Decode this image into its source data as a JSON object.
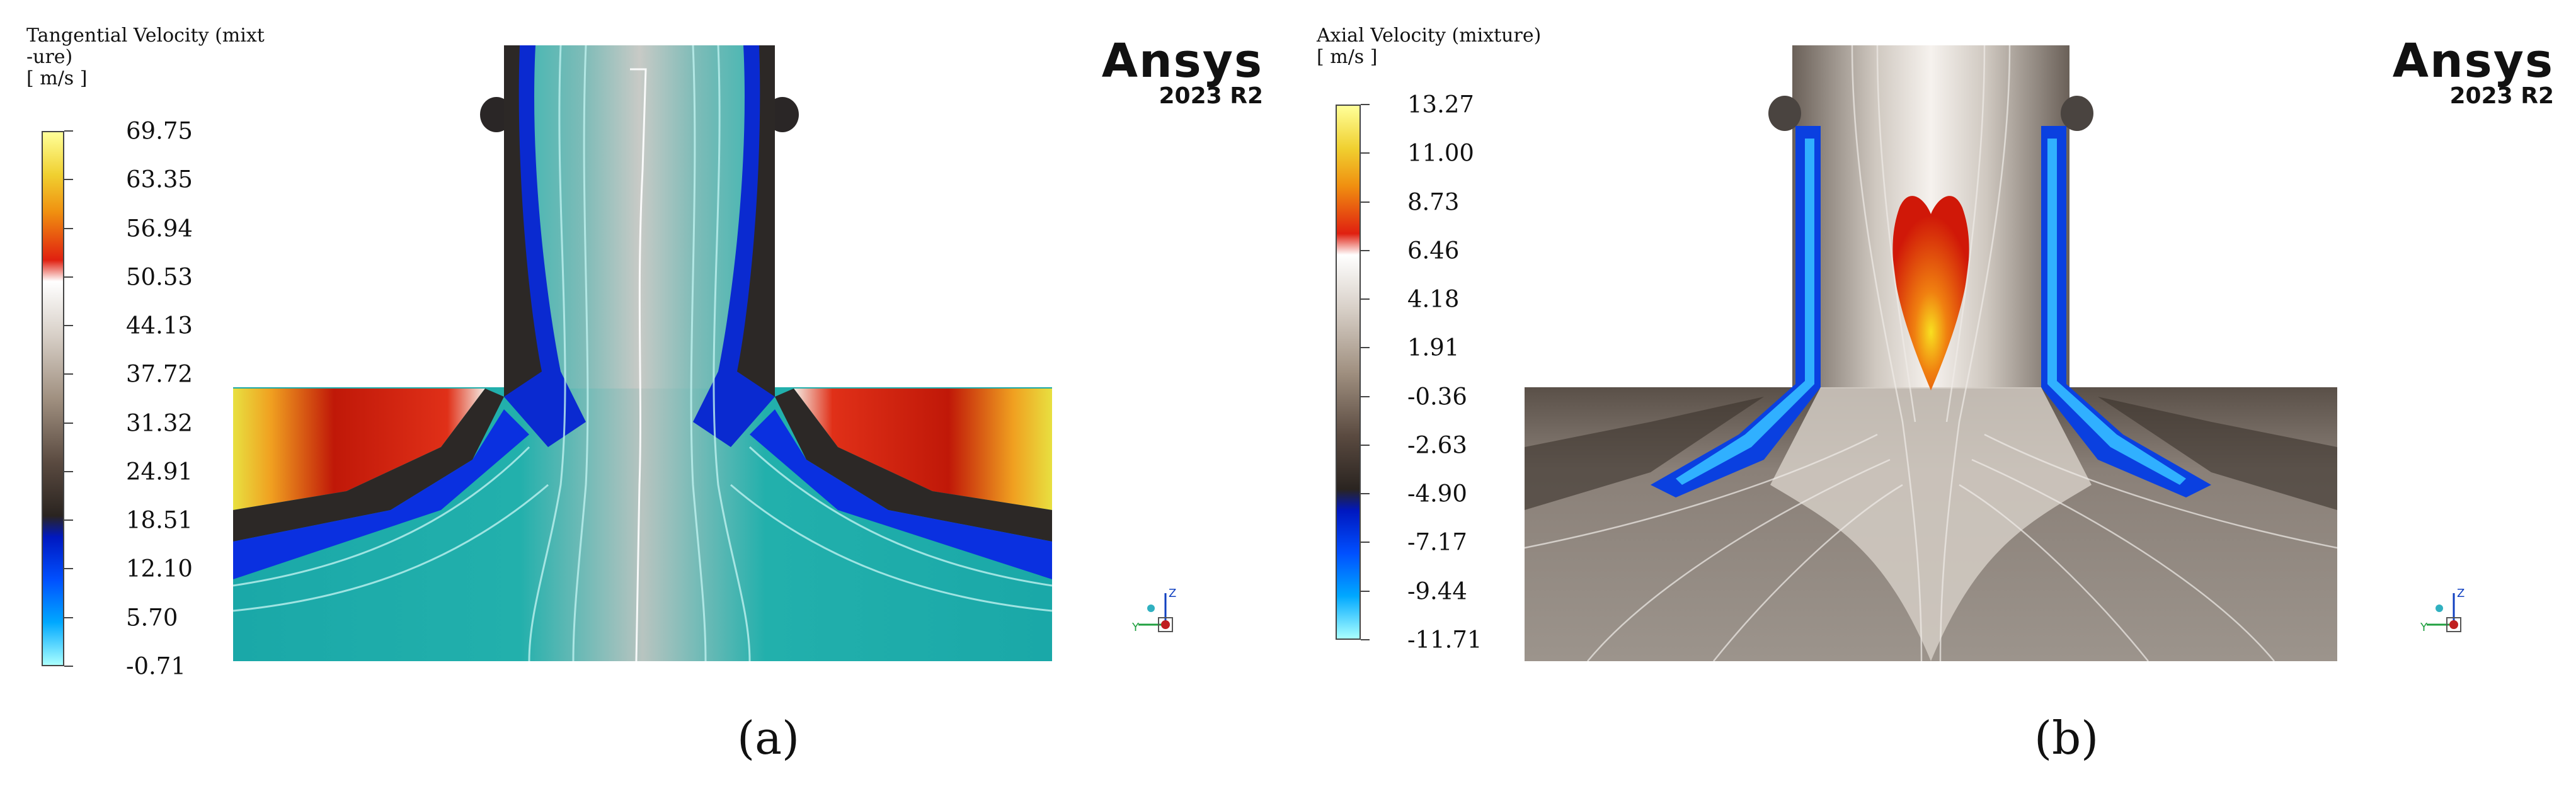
{
  "panel_a": {
    "legend": {
      "title": "Tangential Velocity (mixt\n-ure)\n[ m/s ]",
      "ticks": [
        "69.75",
        "63.35",
        "56.94",
        "50.53",
        "44.13",
        "37.72",
        "31.32",
        "24.91",
        "18.51",
        "12.10",
        "5.70",
        "-0.71"
      ]
    },
    "logo": {
      "name": "Ansys",
      "version": "2023 R2"
    },
    "caption": "(a)",
    "axis_labels": {
      "z": "Z",
      "y": "Y"
    },
    "colormap": [
      "#ffff99",
      "#f0c000",
      "#e03010",
      "#ffffff",
      "#a09080",
      "#3a302a",
      "#0018c0",
      "#00a8ff",
      "#aaffff"
    ]
  },
  "panel_b": {
    "legend": {
      "title": "Axial Velocity (mixture)\n[ m/s ]",
      "ticks": [
        "13.27",
        "11.00",
        "8.73",
        "6.46",
        "4.18",
        "1.91",
        "-0.36",
        "-2.63",
        "-4.90",
        "-7.17",
        "-9.44",
        "-11.71"
      ]
    },
    "logo": {
      "name": "Ansys",
      "version": "2023 R2"
    },
    "caption": "(b)",
    "axis_labels": {
      "z": "Z",
      "y": "Y"
    },
    "colormap": [
      "#ffff99",
      "#f0c000",
      "#e03010",
      "#ffffff",
      "#a09080",
      "#3a302a",
      "#0018c0",
      "#00a8ff",
      "#aaffff"
    ]
  }
}
